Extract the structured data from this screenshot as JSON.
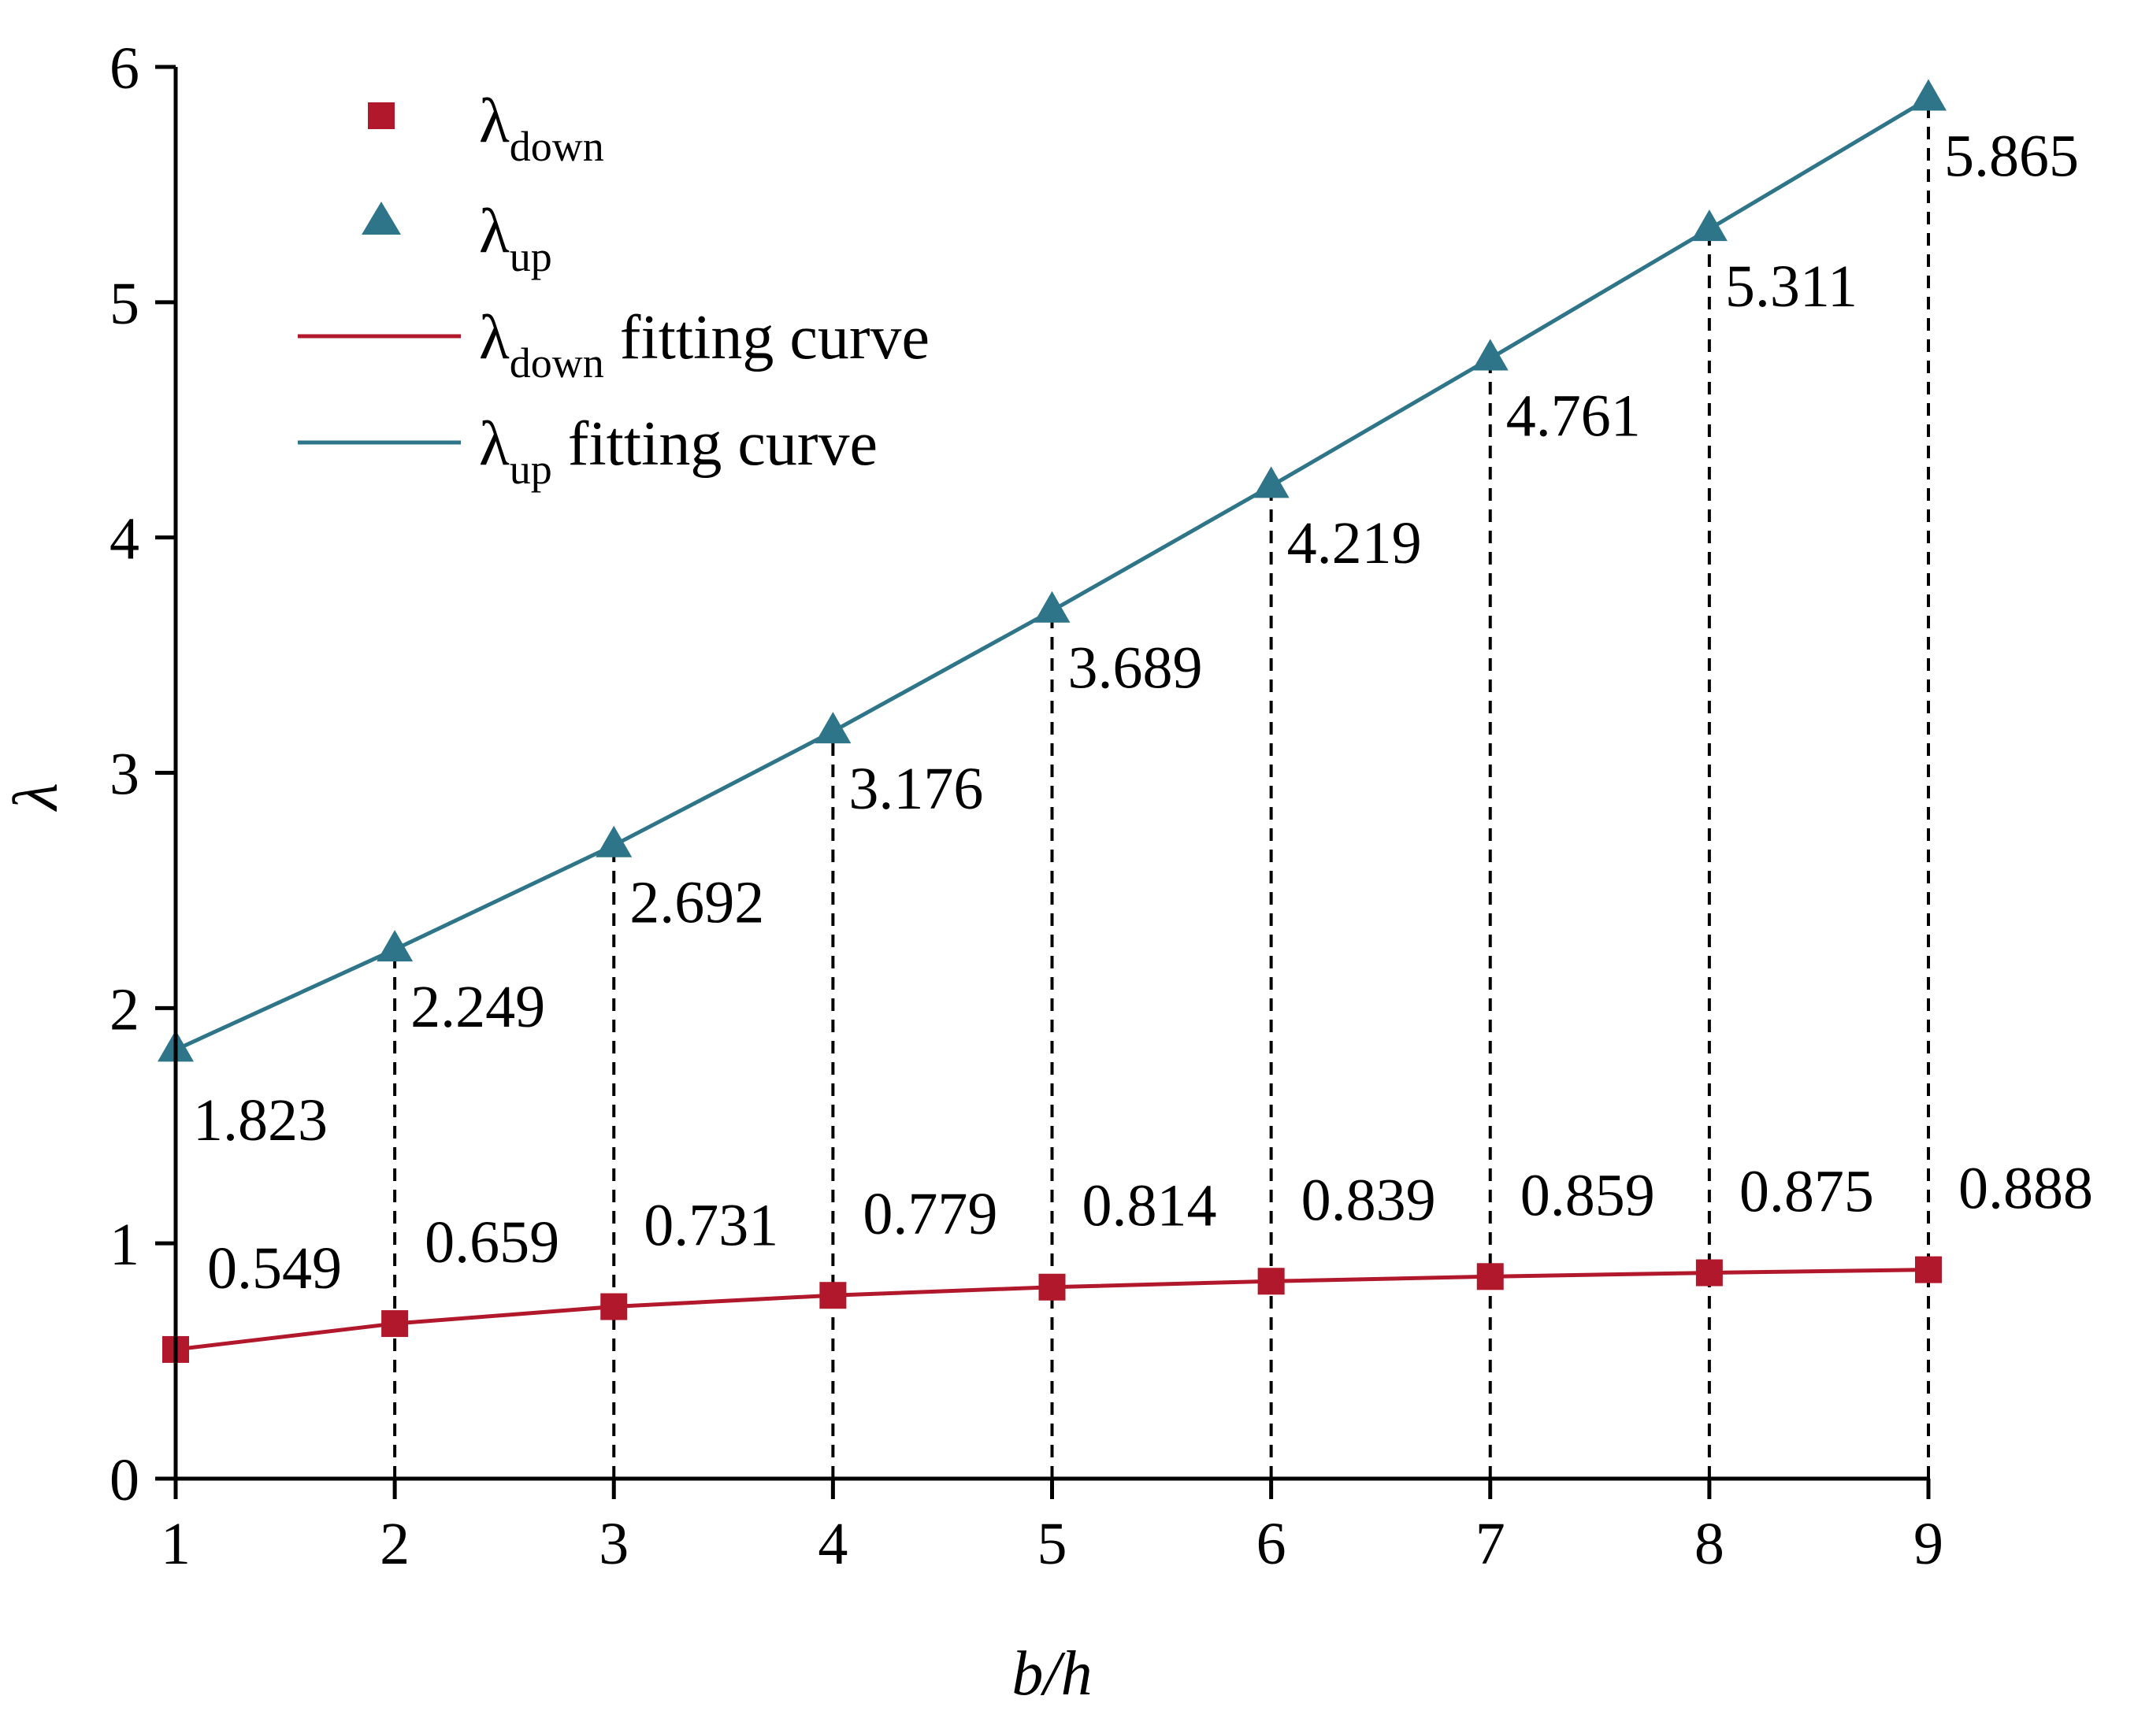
{
  "chart_data": {
    "type": "line",
    "xlabel": "b/h",
    "ylabel": "λ",
    "xlim": [
      1,
      9
    ],
    "ylim": [
      0,
      6
    ],
    "xticks": [
      "1",
      "2",
      "3",
      "4",
      "5",
      "6",
      "7",
      "8",
      "9"
    ],
    "yticks": [
      "0",
      "1",
      "2",
      "3",
      "4",
      "5",
      "6"
    ],
    "x": [
      1,
      2,
      3,
      4,
      5,
      6,
      7,
      8,
      9
    ],
    "series": [
      {
        "name": "λdown",
        "marker": "square",
        "color": "#b2182b",
        "values": [
          0.549,
          0.659,
          0.731,
          0.779,
          0.814,
          0.839,
          0.859,
          0.875,
          0.888
        ],
        "labels": [
          "0.549",
          "0.659",
          "0.731",
          "0.779",
          "0.814",
          "0.839",
          "0.859",
          "0.875",
          "0.888"
        ]
      },
      {
        "name": "λup",
        "marker": "triangle",
        "color": "#2e7589",
        "values": [
          1.823,
          2.249,
          2.692,
          3.176,
          3.689,
          4.219,
          4.761,
          5.311,
          5.865
        ],
        "labels": [
          "1.823",
          "2.249",
          "2.692",
          "3.176",
          "3.689",
          "4.219",
          "4.761",
          "5.311",
          "5.865"
        ]
      }
    ],
    "legend": {
      "placement": "top-left",
      "entries": [
        {
          "symbol": "λ",
          "sub": "down",
          "suffix": "",
          "kind": "square-marker",
          "color": "#b2182b"
        },
        {
          "symbol": "λ",
          "sub": "up",
          "suffix": "",
          "kind": "triangle-marker",
          "color": "#2e7589"
        },
        {
          "symbol": "λ",
          "sub": "down",
          "suffix": " fitting curve",
          "kind": "line",
          "color": "#b2182b"
        },
        {
          "symbol": "λ",
          "sub": "up",
          "suffix": " fitting curve",
          "kind": "line",
          "color": "#2e7589"
        }
      ]
    },
    "grid": false
  }
}
